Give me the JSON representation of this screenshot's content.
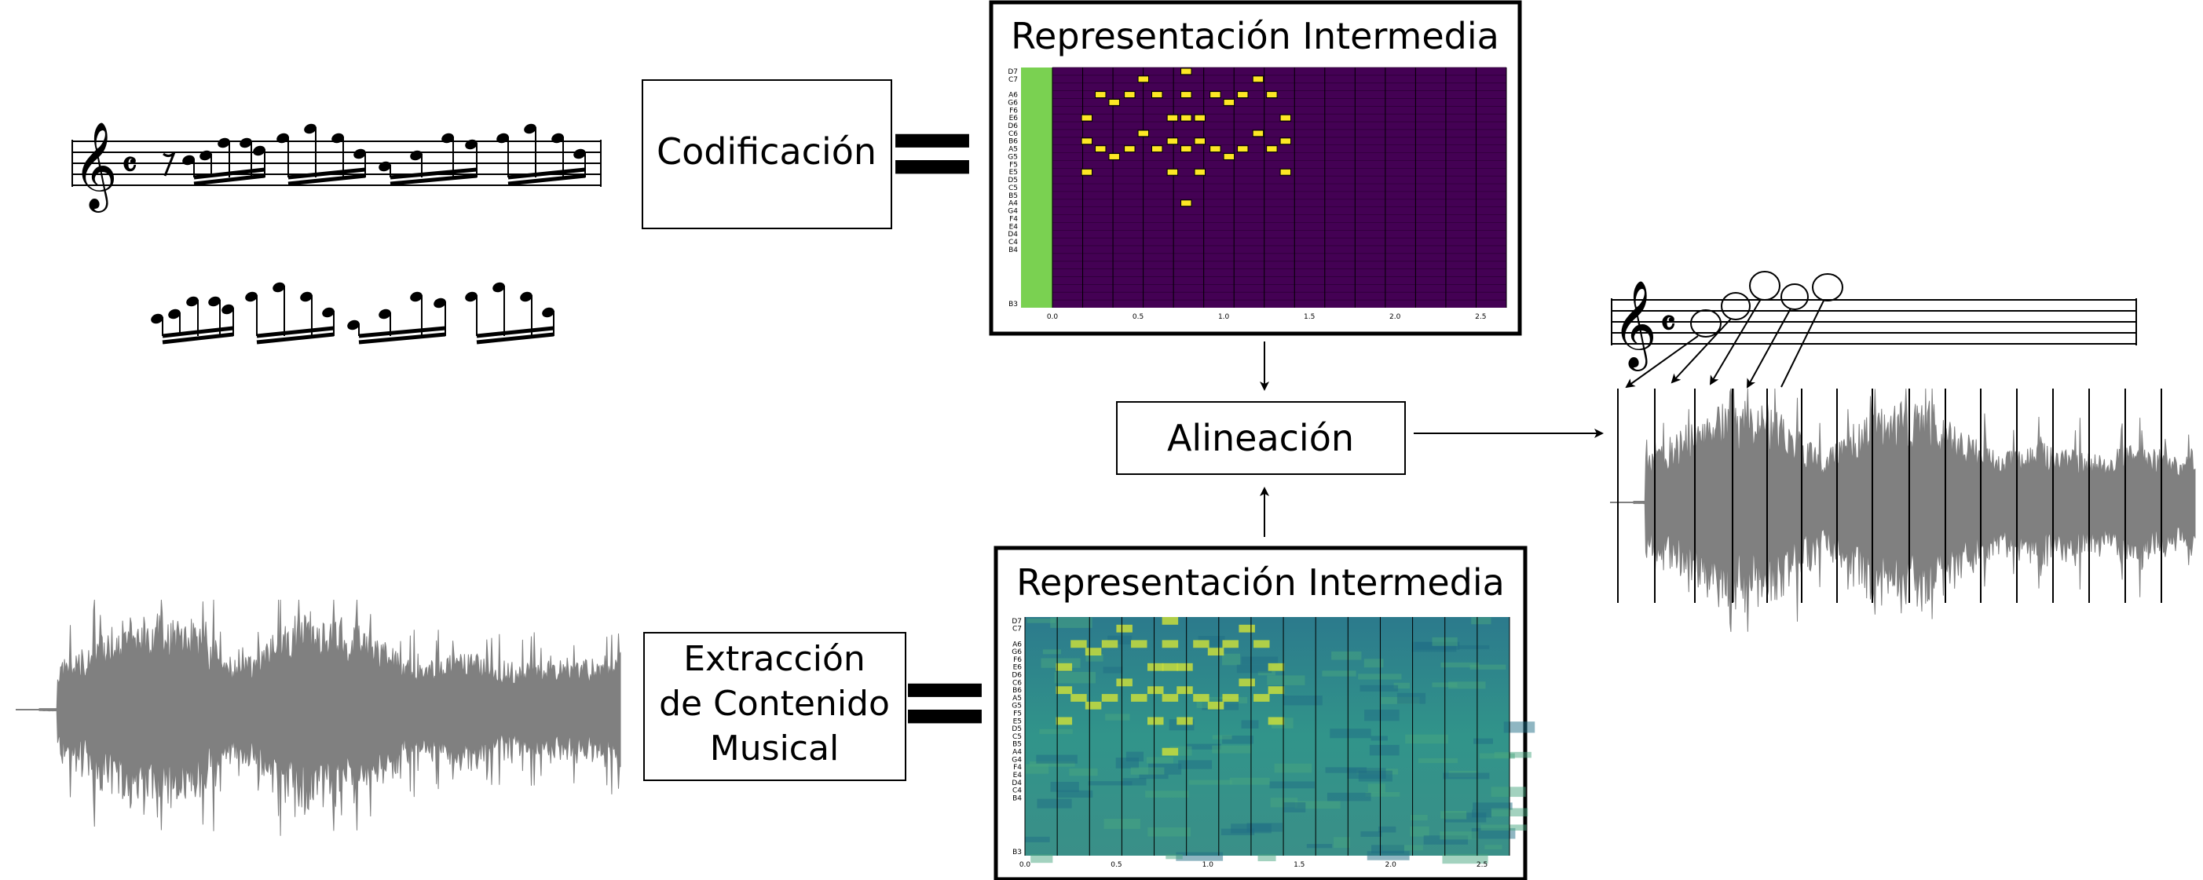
{
  "boxes": {
    "codificacion": "Codificación",
    "extraccion_lines": [
      "Extracción",
      "de Contenido",
      "Musical"
    ],
    "alineacion": "Alineación",
    "repr_top_title": "Representación Intermedia",
    "repr_bottom_title": "Representación Intermedia"
  },
  "symbols": {
    "equals": "="
  },
  "score": {
    "clef_glyph": "𝄞",
    "time_signature": "𝄴"
  },
  "pianoroll": {
    "pitch_labels": [
      "D7",
      "C7",
      "B6",
      "A6",
      "G6",
      "F6",
      "E6",
      "D6",
      "C6",
      "B5",
      "A5",
      "G5",
      "F5",
      "E5",
      "D5",
      "C5",
      "B4",
      "A4",
      "G4",
      "F4",
      "E4",
      "D4",
      "C4",
      "B3"
    ],
    "x_ticks": [
      "0.0",
      "0.5",
      "1.0",
      "1.5",
      "2.0",
      "2.5"
    ],
    "x_range": [
      0,
      2.65
    ],
    "pitch_range": [
      "B3",
      "D7"
    ],
    "colors": {
      "background": "#440154",
      "note": "#fde725",
      "onset": "#7ad151"
    },
    "notes": [
      {
        "t": 0.17,
        "d": 0.08,
        "pitch": "B6"
      },
      {
        "t": 0.17,
        "d": 0.08,
        "pitch": "E6"
      },
      {
        "t": 0.17,
        "d": 0.08,
        "pitch": "E5"
      },
      {
        "t": 0.25,
        "d": 0.08,
        "pitch": "A6"
      },
      {
        "t": 0.25,
        "d": 0.08,
        "pitch": "A5"
      },
      {
        "t": 0.33,
        "d": 0.08,
        "pitch": "G6"
      },
      {
        "t": 0.33,
        "d": 0.08,
        "pitch": "G5"
      },
      {
        "t": 0.42,
        "d": 0.08,
        "pitch": "A6"
      },
      {
        "t": 0.42,
        "d": 0.08,
        "pitch": "A5"
      },
      {
        "t": 0.5,
        "d": 0.08,
        "pitch": "C7"
      },
      {
        "t": 0.5,
        "d": 0.08,
        "pitch": "C6"
      },
      {
        "t": 0.58,
        "d": 0.08,
        "pitch": "A6"
      },
      {
        "t": 0.58,
        "d": 0.08,
        "pitch": "A5"
      },
      {
        "t": 0.67,
        "d": 0.08,
        "pitch": "B6"
      },
      {
        "t": 0.67,
        "d": 0.08,
        "pitch": "E6"
      },
      {
        "t": 0.67,
        "d": 0.08,
        "pitch": "E5"
      },
      {
        "t": 0.75,
        "d": 0.08,
        "pitch": "D7"
      },
      {
        "t": 0.75,
        "d": 0.08,
        "pitch": "A6"
      },
      {
        "t": 0.75,
        "d": 0.08,
        "pitch": "E6"
      },
      {
        "t": 0.75,
        "d": 0.08,
        "pitch": "A5"
      },
      {
        "t": 0.75,
        "d": 0.08,
        "pitch": "A4"
      },
      {
        "t": 0.83,
        "d": 0.08,
        "pitch": "B6"
      },
      {
        "t": 0.83,
        "d": 0.08,
        "pitch": "E6"
      },
      {
        "t": 0.83,
        "d": 0.08,
        "pitch": "E5"
      },
      {
        "t": 0.92,
        "d": 0.08,
        "pitch": "A6"
      },
      {
        "t": 0.92,
        "d": 0.08,
        "pitch": "A5"
      },
      {
        "t": 1.0,
        "d": 0.08,
        "pitch": "G6"
      },
      {
        "t": 1.0,
        "d": 0.08,
        "pitch": "G5"
      },
      {
        "t": 1.08,
        "d": 0.08,
        "pitch": "A6"
      },
      {
        "t": 1.08,
        "d": 0.08,
        "pitch": "A5"
      },
      {
        "t": 1.17,
        "d": 0.08,
        "pitch": "C7"
      },
      {
        "t": 1.17,
        "d": 0.08,
        "pitch": "C6"
      },
      {
        "t": 1.25,
        "d": 0.08,
        "pitch": "A6"
      },
      {
        "t": 1.25,
        "d": 0.08,
        "pitch": "A5"
      },
      {
        "t": 1.33,
        "d": 0.08,
        "pitch": "B6"
      },
      {
        "t": 1.33,
        "d": 0.08,
        "pitch": "E6"
      },
      {
        "t": 1.33,
        "d": 0.08,
        "pitch": "E5"
      }
    ]
  },
  "colors": {
    "stroke": "#000000",
    "waveform": "#808080"
  }
}
